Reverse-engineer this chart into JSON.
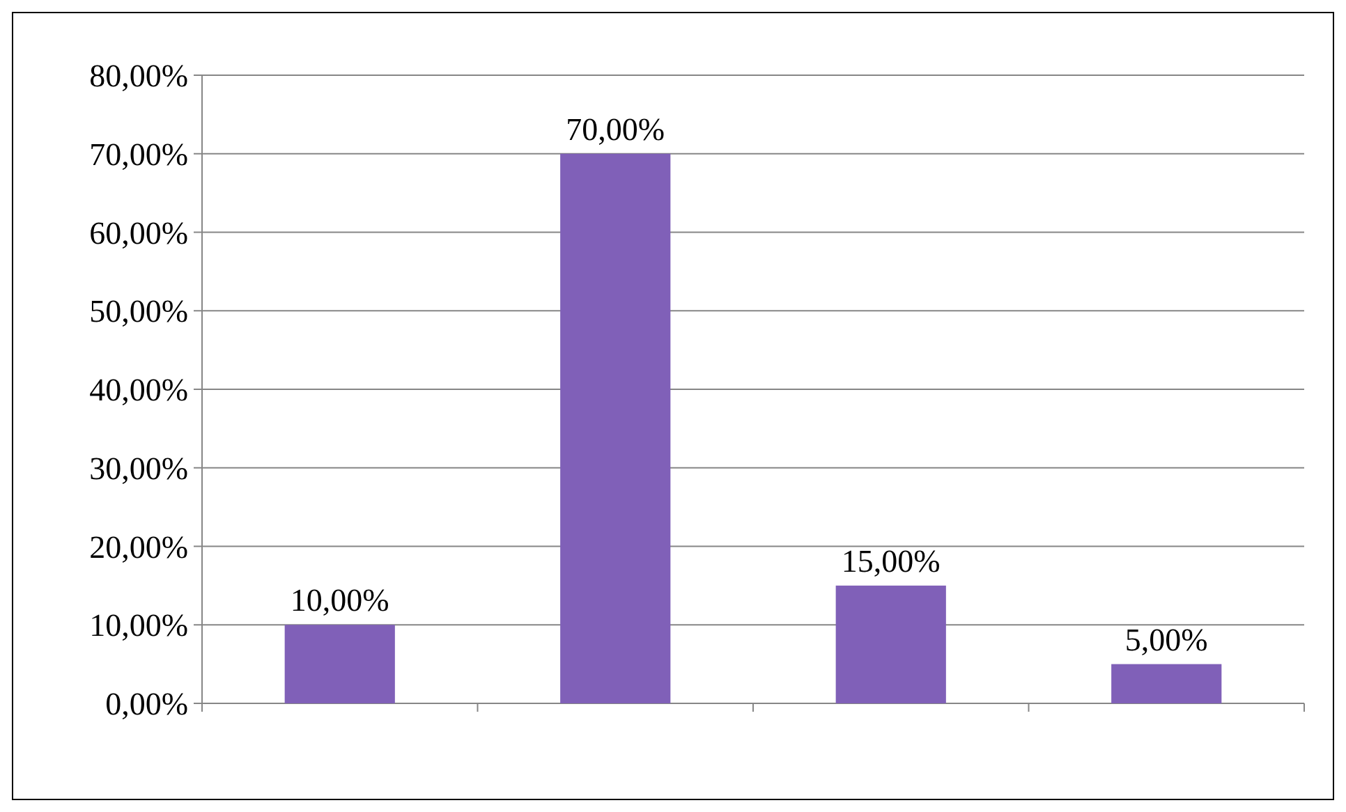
{
  "chart_data": {
    "type": "bar",
    "categories": [
      null,
      null,
      null,
      null
    ],
    "values": [
      10,
      70,
      15,
      5
    ],
    "value_labels": [
      "10,00%",
      "70,00%",
      "15,00%",
      "5,00%"
    ],
    "color": "#8060b8",
    "ylim": [
      0,
      80
    ],
    "yticks": [
      {
        "value": 0,
        "label": "0,00%"
      },
      {
        "value": 10,
        "label": "10,00%"
      },
      {
        "value": 20,
        "label": "20,00%"
      },
      {
        "value": 30,
        "label": "30,00%"
      },
      {
        "value": 40,
        "label": "40,00%"
      },
      {
        "value": 50,
        "label": "50,00%"
      },
      {
        "value": 60,
        "label": "60,00%"
      },
      {
        "value": 70,
        "label": "70,00%"
      },
      {
        "value": 80,
        "label": "80,00%"
      }
    ],
    "grid": "y"
  }
}
